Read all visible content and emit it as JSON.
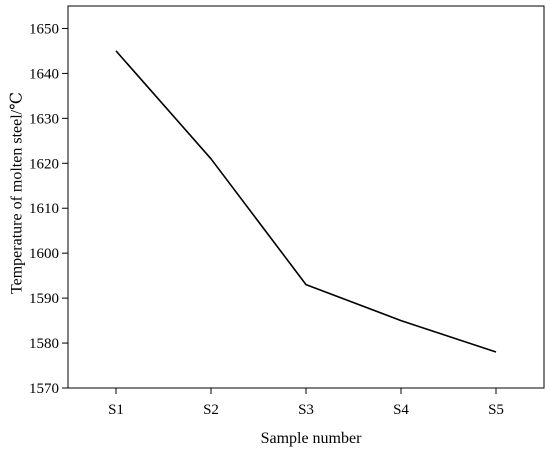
{
  "chart_data": {
    "type": "line",
    "categories": [
      "S1",
      "S2",
      "S3",
      "S4",
      "S5"
    ],
    "series": [
      {
        "values": [
          1645,
          1621,
          1593,
          1585,
          1578
        ]
      }
    ],
    "xlabel": "Sample number",
    "ylabel": "Temperature of molten steel/℃",
    "ylim": [
      1570,
      1655
    ],
    "yticks": [
      1570,
      1580,
      1590,
      1600,
      1610,
      1620,
      1630,
      1640,
      1650
    ],
    "grid": false,
    "legend": "none",
    "colors": {
      "line": "#000000",
      "axes": "#000000",
      "background": "#ffffff"
    }
  }
}
